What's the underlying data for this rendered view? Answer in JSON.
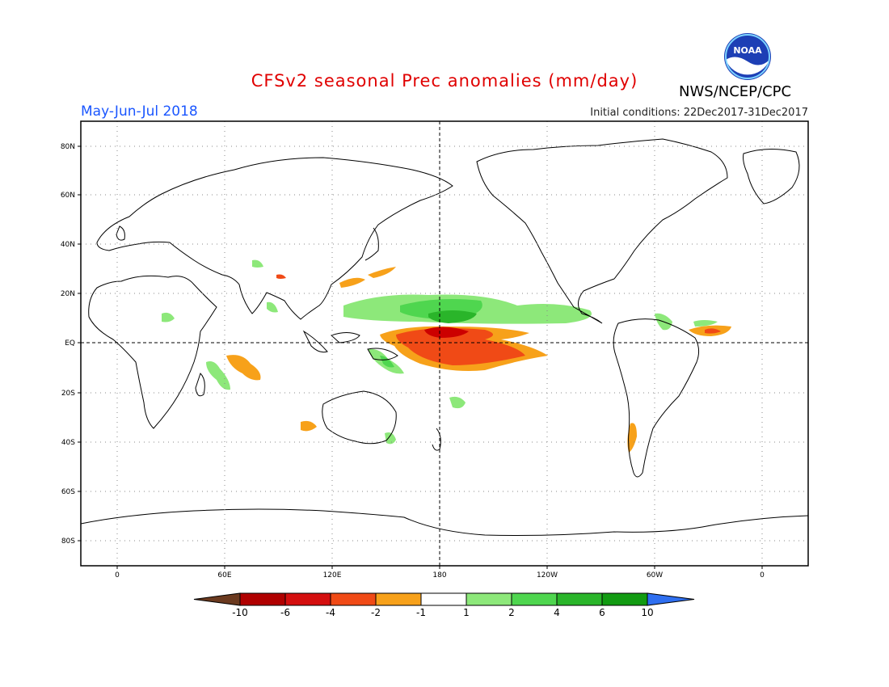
{
  "header": {
    "title": "CFSv2 seasonal Prec anomalies (mm/day)",
    "season": "May-Jun-Jul 2018",
    "initial_conditions": "Initial conditions: 22Dec2017-31Dec2017",
    "agency": "NWS/NCEP/CPC",
    "logo_text": "NOAA"
  },
  "axes": {
    "lat_labels": [
      "80N",
      "60N",
      "40N",
      "20N",
      "EQ",
      "20S",
      "40S",
      "60S",
      "80S"
    ],
    "lon_labels": [
      "0",
      "60E",
      "120E",
      "180",
      "120W",
      "60W",
      "0"
    ]
  },
  "colorbar": {
    "labels": [
      "-10",
      "-6",
      "-4",
      "-2",
      "-1",
      "1",
      "2",
      "4",
      "6",
      "10"
    ],
    "colors": [
      "#6b3a1f",
      "#b00000",
      "#d40f0f",
      "#f04a16",
      "#f7a11a",
      "#ffffff",
      "#8de87a",
      "#4fd64f",
      "#2ab52a",
      "#129b12",
      "#2f6ff0"
    ]
  },
  "colors": {
    "dry_strong": "#cc0000",
    "dry_mid": "#f04a16",
    "dry_light": "#f7a11a",
    "wet_light": "#8de87a",
    "wet_mid": "#4fd64f",
    "wet_strong": "#2ab52a",
    "coast": "#000000"
  }
}
